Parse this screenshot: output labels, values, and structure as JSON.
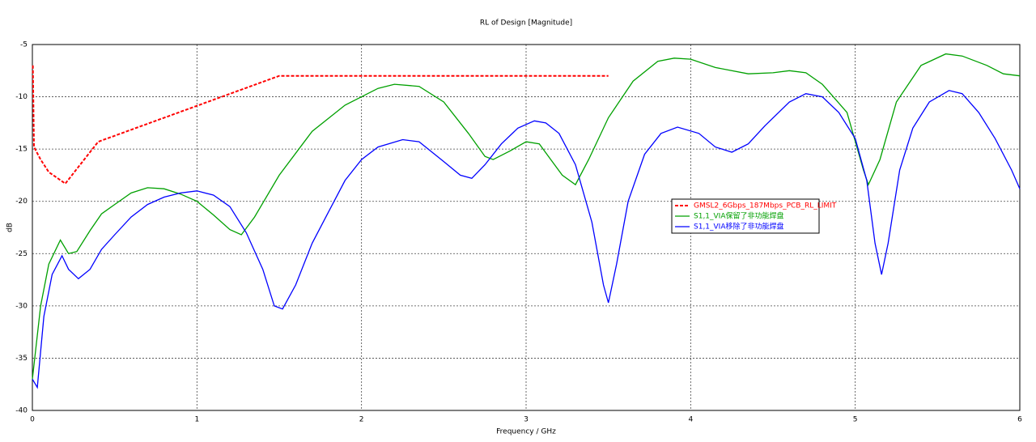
{
  "chart_data": {
    "type": "line",
    "title": "RL of Design [Magnitude]",
    "x_label": "Frequency / GHz",
    "y_label": "dB",
    "xlim": [
      0,
      6
    ],
    "xticks": [
      0,
      1,
      2,
      3,
      4,
      5,
      6
    ],
    "ylim": [
      -40,
      -5
    ],
    "yticks": [
      -40,
      -35,
      -30,
      -25,
      -20,
      -15,
      -10,
      -5
    ],
    "grid": true,
    "legend": "center",
    "series": [
      {
        "name": "GMSL2_6Gbps_187Mbps_PCB_RL_LIMIT",
        "color": "#ff0000",
        "line_style": "dashed",
        "x": [
          0.003,
          0.01,
          0.05,
          0.1,
          0.2,
          0.4,
          1.5,
          3.5
        ],
        "values": [
          -7,
          -14.8,
          -16,
          -17.2,
          -18.3,
          -14.3,
          -8,
          -8
        ]
      },
      {
        "name": "S1,1_VIA保留了非功能焊盘",
        "color": "#00a000",
        "line_style": "solid",
        "x": [
          0,
          0.05,
          0.1,
          0.17,
          0.22,
          0.27,
          0.35,
          0.42,
          0.5,
          0.6,
          0.7,
          0.8,
          0.9,
          1.0,
          1.1,
          1.2,
          1.27,
          1.35,
          1.5,
          1.7,
          1.9,
          2.1,
          2.2,
          2.35,
          2.5,
          2.65,
          2.75,
          2.8,
          2.9,
          3.0,
          3.08,
          3.15,
          3.22,
          3.3,
          3.38,
          3.5,
          3.65,
          3.8,
          3.9,
          4.0,
          4.15,
          4.35,
          4.5,
          4.6,
          4.7,
          4.8,
          4.95,
          5.05,
          5.08,
          5.15,
          5.25,
          5.4,
          5.55,
          5.65,
          5.8,
          5.9,
          6.0
        ],
        "values": [
          -37,
          -30,
          -26,
          -23.7,
          -25,
          -24.8,
          -22.8,
          -21.2,
          -20.3,
          -19.2,
          -18.7,
          -18.8,
          -19.3,
          -20,
          -21.3,
          -22.7,
          -23.2,
          -21.5,
          -17.5,
          -13.3,
          -10.8,
          -9.2,
          -8.8,
          -9,
          -10.5,
          -13.5,
          -15.7,
          -16,
          -15.2,
          -14.3,
          -14.5,
          -16,
          -17.5,
          -18.4,
          -16,
          -12,
          -8.5,
          -6.6,
          -6.3,
          -6.4,
          -7.2,
          -7.8,
          -7.7,
          -7.5,
          -7.7,
          -8.8,
          -11.5,
          -17,
          -18.4,
          -16,
          -10.5,
          -7,
          -5.9,
          -6.1,
          -7,
          -7.8,
          -8
        ]
      },
      {
        "name": "S1,1_VIA移除了非功能焊盘",
        "color": "#0000ff",
        "line_style": "solid",
        "x": [
          0,
          0.03,
          0.07,
          0.12,
          0.18,
          0.22,
          0.28,
          0.35,
          0.42,
          0.5,
          0.6,
          0.7,
          0.8,
          0.9,
          1.0,
          1.1,
          1.2,
          1.3,
          1.4,
          1.47,
          1.52,
          1.6,
          1.7,
          1.8,
          1.9,
          2.0,
          2.1,
          2.25,
          2.35,
          2.5,
          2.6,
          2.67,
          2.75,
          2.85,
          2.95,
          3.05,
          3.12,
          3.2,
          3.3,
          3.4,
          3.47,
          3.5,
          3.55,
          3.62,
          3.72,
          3.82,
          3.92,
          4.05,
          4.15,
          4.25,
          4.35,
          4.45,
          4.6,
          4.7,
          4.8,
          4.9,
          5.0,
          5.07,
          5.12,
          5.16,
          5.2,
          5.27,
          5.35,
          5.45,
          5.57,
          5.65,
          5.75,
          5.85,
          5.95,
          6.0
        ],
        "values": [
          -37,
          -37.8,
          -31,
          -27,
          -25.2,
          -26.5,
          -27.4,
          -26.5,
          -24.6,
          -23.2,
          -21.5,
          -20.3,
          -19.6,
          -19.2,
          -19,
          -19.4,
          -20.5,
          -23,
          -26.5,
          -30,
          -30.3,
          -28,
          -24,
          -21,
          -18,
          -16,
          -14.8,
          -14.1,
          -14.3,
          -16.2,
          -17.5,
          -17.8,
          -16.5,
          -14.5,
          -13,
          -12.3,
          -12.5,
          -13.5,
          -16.5,
          -22,
          -28,
          -29.7,
          -26,
          -20,
          -15.5,
          -13.5,
          -12.9,
          -13.5,
          -14.8,
          -15.3,
          -14.5,
          -12.8,
          -10.5,
          -9.7,
          -10,
          -11.5,
          -14,
          -18,
          -24,
          -27,
          -24,
          -17,
          -13,
          -10.5,
          -9.4,
          -9.7,
          -11.5,
          -14,
          -17,
          -18.8
        ]
      }
    ]
  }
}
